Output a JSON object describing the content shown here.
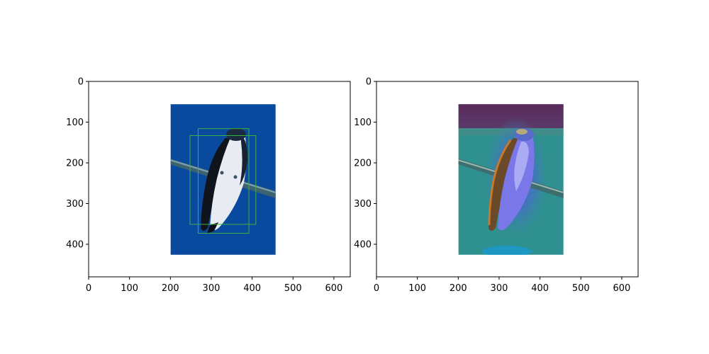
{
  "chart_data": [
    {
      "type": "image",
      "panel": "left",
      "image_extent_px": {
        "x": [
          0,
          640
        ],
        "y": [
          0,
          480
        ]
      },
      "xlim": [
        0,
        640
      ],
      "ylim": [
        480,
        0
      ],
      "xticks": [
        0,
        100,
        200,
        300,
        400,
        500,
        600
      ],
      "yticks": [
        0,
        100,
        200,
        300,
        400
      ],
      "content": "photo of a swallow perched on a wire, blue background",
      "photo_region": {
        "x": [
          200,
          457
        ],
        "y": [
          58,
          427
        ]
      },
      "boxes": [
        {
          "x": [
            268,
            392
          ],
          "y": [
            116,
            373
          ],
          "color": "#3cb043"
        },
        {
          "x": [
            248,
            409
          ],
          "y": [
            133,
            351
          ],
          "color": "#3cb043"
        }
      ]
    },
    {
      "type": "image",
      "panel": "right",
      "image_extent_px": {
        "x": [
          0,
          640
        ],
        "y": [
          0,
          480
        ]
      },
      "xlim": [
        0,
        640
      ],
      "ylim": [
        480,
        0
      ],
      "xticks": [
        0,
        100,
        200,
        300,
        400,
        500,
        600
      ],
      "yticks": [
        0,
        100,
        200,
        300,
        400
      ],
      "content": "same photo with heatmap overlay",
      "photo_region": {
        "x": [
          200,
          457
        ],
        "y": [
          58,
          427
        ]
      }
    }
  ],
  "colors": {
    "photo_bg": "#0a4a9e",
    "box": "#3cb043",
    "heat_base": "#2f9090",
    "heat_top": "#5a2a5a"
  }
}
